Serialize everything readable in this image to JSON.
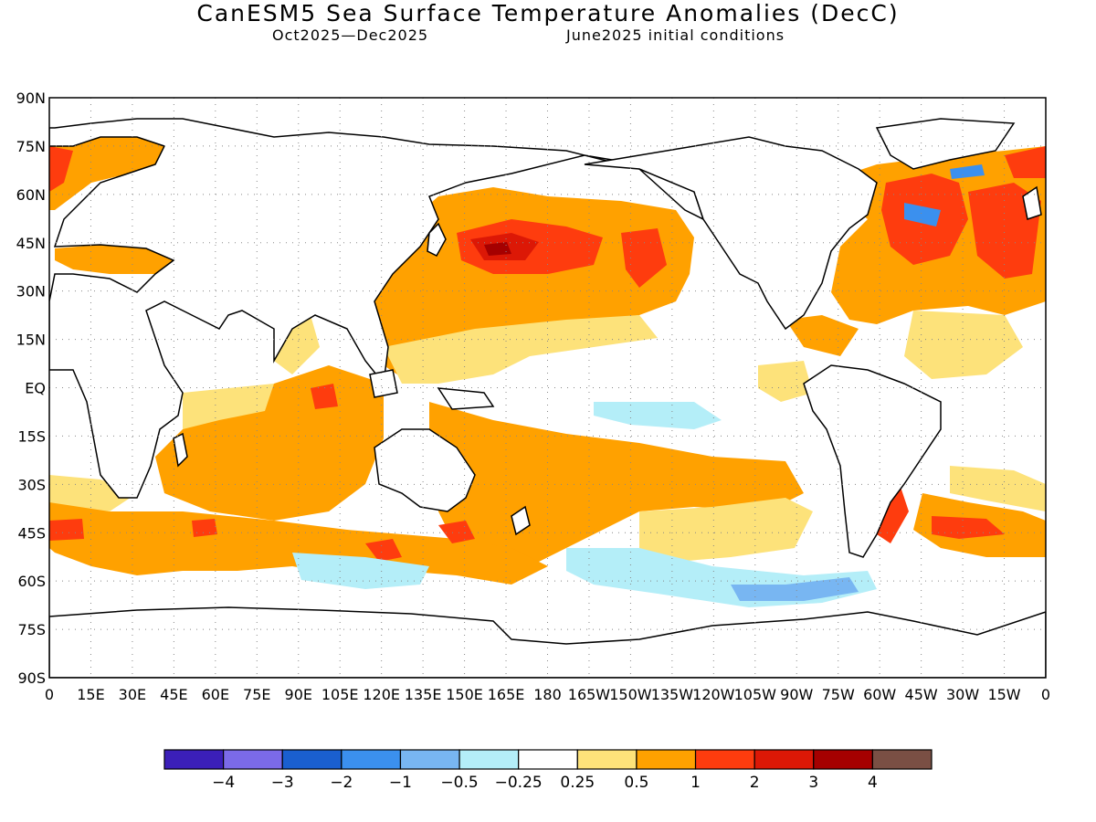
{
  "title": "CanESM5 Sea Surface Temperature Anomalies (DecC)",
  "subtitle_left": "Oct2025—Dec2025",
  "subtitle_right": "June2025 initial conditions",
  "lat_labels": [
    "90N",
    "75N",
    "60N",
    "45N",
    "30N",
    "15N",
    "EQ",
    "15S",
    "30S",
    "45S",
    "60S",
    "75S",
    "90S"
  ],
  "lon_labels": [
    "0",
    "15E",
    "30E",
    "45E",
    "60E",
    "75E",
    "90E",
    "105E",
    "120E",
    "135E",
    "150E",
    "165E",
    "180",
    "165W",
    "150W",
    "135W",
    "120W",
    "105W",
    "90W",
    "75W",
    "60W",
    "45W",
    "30W",
    "15W",
    "0"
  ],
  "colorbar": {
    "colors": [
      "#3b1fb8",
      "#7b6ae8",
      "#1a5fcf",
      "#3b90ee",
      "#78b6f2",
      "#b4eef8",
      "#ffffff",
      "#fde27a",
      "#ffa100",
      "#fe3c0e",
      "#dc1806",
      "#a50000",
      "#7a4f44"
    ],
    "labels": [
      "−4",
      "−3",
      "−2",
      "−1",
      "−0.5",
      "−0.25",
      "0.25",
      "0.5",
      "1",
      "2",
      "3",
      "4"
    ]
  },
  "map_colors": {
    "anom_025": "#fde27a",
    "anom_05": "#ffa100",
    "anom_1": "#fe3c0e",
    "anom_2": "#dc1806",
    "anom_3": "#a50000",
    "neg_025": "#b4eef8",
    "neg_05": "#78b6f2",
    "neg_1": "#3b90ee"
  }
}
